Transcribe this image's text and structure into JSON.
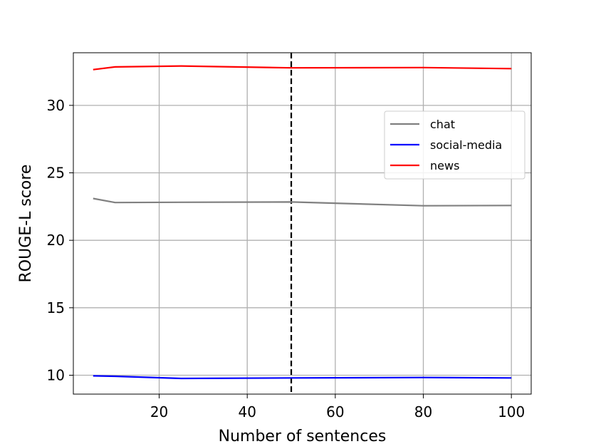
{
  "chart_data": {
    "type": "line",
    "xlabel": "Number of sentences",
    "ylabel": "ROUGE-L score",
    "xlim": [
      0.5,
      104.5
    ],
    "ylim": [
      8.6,
      33.9
    ],
    "xticks": [
      20,
      40,
      60,
      80,
      100
    ],
    "yticks": [
      10,
      15,
      20,
      25,
      30
    ],
    "grid": true,
    "legend_position": "upper-right",
    "vline": {
      "x": 50,
      "style": "dashed",
      "color": "#000000"
    },
    "series": [
      {
        "name": "chat",
        "color": "#808080",
        "x": [
          5,
          10,
          25,
          50,
          80,
          100
        ],
        "y": [
          23.1,
          22.8,
          22.82,
          22.84,
          22.56,
          22.58
        ]
      },
      {
        "name": "social-media",
        "color": "#0000ff",
        "x": [
          5,
          10,
          25,
          50,
          80,
          100
        ],
        "y": [
          9.95,
          9.92,
          9.76,
          9.8,
          9.83,
          9.8
        ]
      },
      {
        "name": "news",
        "color": "#ff0000",
        "x": [
          5,
          10,
          25,
          50,
          80,
          100
        ],
        "y": [
          32.65,
          32.85,
          32.92,
          32.78,
          32.8,
          32.72
        ]
      }
    ]
  }
}
